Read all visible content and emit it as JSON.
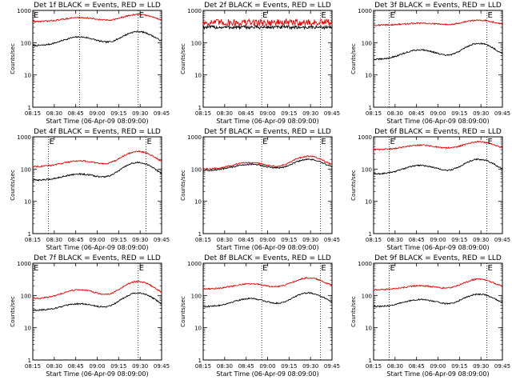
{
  "colors": {
    "events": "#000000",
    "lld": "#e00000",
    "marker_line": "#000000"
  },
  "chart_data": [
    {
      "type": "line",
      "title": "Det 1f BLACK = Events, RED = LLD",
      "xlabel": "Start Time (06-Apr-09 08:09:00)",
      "ylabel": "Counts/sec",
      "x_ticks": [
        "08:15",
        "08:30",
        "08:45",
        "09:00",
        "09:15",
        "09:30",
        "09:45"
      ],
      "y_ticks": [
        "1",
        "10",
        "100",
        "1000"
      ],
      "yscale": "log",
      "ylim": [
        1,
        1000
      ],
      "xlim_min": [
        6,
        39
      ],
      "vlines_min": [
        18,
        33
      ],
      "markers": [
        {
          "label": "E",
          "x_min": 6
        },
        {
          "label": "E",
          "x_min": 33
        }
      ],
      "series": [
        {
          "color": "events",
          "base": 80,
          "peak1": {
            "x_min": 18,
            "value": 150
          },
          "peak2": {
            "x_min": 33,
            "value": 220
          }
        },
        {
          "color": "lld",
          "base": 450,
          "peak1": {
            "x_min": 18,
            "value": 600
          },
          "peak2": {
            "x_min": 33,
            "value": 750
          }
        }
      ]
    },
    {
      "type": "line",
      "title": "Det 2f BLACK = Events, RED = LLD",
      "xlabel": "Start Time (06-Apr-09 08:09:00)",
      "ylabel": "Counts/sec",
      "x_ticks": [
        "08:15",
        "08:30",
        "08:45",
        "09:00",
        "09:15",
        "09:30",
        "09:45"
      ],
      "y_ticks": [
        "1",
        "10",
        "100",
        "1000"
      ],
      "yscale": "log",
      "ylim": [
        1,
        1000
      ],
      "xlim_min": [
        6,
        39
      ],
      "vlines_min": [
        21,
        36
      ],
      "markers": [
        {
          "label": "E",
          "x_min": 21
        },
        {
          "label": "E",
          "x_min": 36
        }
      ],
      "series": [
        {
          "color": "events",
          "base": 300,
          "noise": 0.12
        },
        {
          "color": "lld",
          "base": 420,
          "noise": 0.25
        }
      ]
    },
    {
      "type": "line",
      "title": "Det 3f BLACK = Events, RED = LLD",
      "xlabel": "Start Time (06-Apr-09 08:09:00)",
      "ylabel": "Counts/sec",
      "x_ticks": [
        "08:15",
        "08:30",
        "08:45",
        "09:00",
        "09:15",
        "09:30",
        "09:45"
      ],
      "y_ticks": [
        "1",
        "10",
        "100",
        "1000"
      ],
      "yscale": "log",
      "ylim": [
        1,
        1000
      ],
      "xlim_min": [
        6,
        39
      ],
      "vlines_min": [
        10,
        35
      ],
      "markers": [
        {
          "label": "E",
          "x_min": 10
        },
        {
          "label": "E",
          "x_min": 35
        }
      ],
      "series": [
        {
          "color": "events",
          "base": 30,
          "peak1": {
            "x_min": 18,
            "value": 60
          },
          "peak2": {
            "x_min": 33,
            "value": 95
          }
        },
        {
          "color": "lld",
          "base": 350,
          "peak1": {
            "x_min": 18,
            "value": 400
          },
          "peak2": {
            "x_min": 33,
            "value": 500
          }
        }
      ]
    },
    {
      "type": "line",
      "title": "Det 4f BLACK = Events, RED = LLD",
      "xlabel": "Start Time (06-Apr-09 08:09:00)",
      "ylabel": "Counts/sec",
      "x_ticks": [
        "08:15",
        "08:30",
        "08:45",
        "09:00",
        "09:15",
        "09:30",
        "09:45"
      ],
      "y_ticks": [
        "1",
        "10",
        "100",
        "1000"
      ],
      "yscale": "log",
      "ylim": [
        1,
        1000
      ],
      "xlim_min": [
        6,
        39
      ],
      "vlines_min": [
        10,
        35
      ],
      "markers": [
        {
          "label": "E",
          "x_min": 10
        },
        {
          "label": "E",
          "x_min": 35
        }
      ],
      "series": [
        {
          "color": "events",
          "base": 45,
          "peak1": {
            "x_min": 18,
            "value": 70
          },
          "peak2": {
            "x_min": 33,
            "value": 160
          }
        },
        {
          "color": "lld",
          "base": 120,
          "peak1": {
            "x_min": 18,
            "value": 180
          },
          "peak2": {
            "x_min": 33,
            "value": 350
          }
        }
      ]
    },
    {
      "type": "line",
      "title": "Det 5f BLACK = Events, RED = LLD",
      "xlabel": "Start Time (06-Apr-09 08:09:00)",
      "ylabel": "Counts/sec",
      "x_ticks": [
        "08:15",
        "08:30",
        "08:45",
        "09:00",
        "09:15",
        "09:30",
        "09:45"
      ],
      "y_ticks": [
        "1",
        "10",
        "100",
        "1000"
      ],
      "yscale": "log",
      "ylim": [
        1,
        1000
      ],
      "xlim_min": [
        6,
        39
      ],
      "vlines_min": [
        21,
        36
      ],
      "markers": [
        {
          "label": "E",
          "x_min": 21
        },
        {
          "label": "E",
          "x_min": 36
        }
      ],
      "series": [
        {
          "color": "events",
          "base": 90,
          "peak1": {
            "x_min": 18,
            "value": 140
          },
          "peak2": {
            "x_min": 33,
            "value": 200
          }
        },
        {
          "color": "lld",
          "base": 100,
          "peak1": {
            "x_min": 18,
            "value": 160
          },
          "peak2": {
            "x_min": 33,
            "value": 250
          }
        }
      ]
    },
    {
      "type": "line",
      "title": "Det 6f BLACK = Events, RED = LLD",
      "xlabel": "Start Time (06-Apr-09 08:09:00)",
      "ylabel": "Counts/sec",
      "x_ticks": [
        "08:15",
        "08:30",
        "08:45",
        "09:00",
        "09:15",
        "09:30",
        "09:45"
      ],
      "y_ticks": [
        "1",
        "10",
        "100",
        "1000"
      ],
      "yscale": "log",
      "ylim": [
        1,
        1000
      ],
      "xlim_min": [
        6,
        39
      ],
      "vlines_min": [
        10,
        35
      ],
      "markers": [
        {
          "label": "E",
          "x_min": 10
        },
        {
          "label": "E",
          "x_min": 35
        }
      ],
      "series": [
        {
          "color": "events",
          "base": 70,
          "peak1": {
            "x_min": 18,
            "value": 130
          },
          "peak2": {
            "x_min": 33,
            "value": 200
          }
        },
        {
          "color": "lld",
          "base": 400,
          "peak1": {
            "x_min": 18,
            "value": 550
          },
          "peak2": {
            "x_min": 33,
            "value": 700
          }
        }
      ]
    },
    {
      "type": "line",
      "title": "Det 7f BLACK = Events, RED = LLD",
      "xlabel": "Start Time (06-Apr-09 08:09:00)",
      "ylabel": "Counts/sec",
      "x_ticks": [
        "08:15",
        "08:30",
        "08:45",
        "09:00",
        "09:15",
        "09:30",
        "09:45"
      ],
      "y_ticks": [
        "1",
        "10",
        "100",
        "1000"
      ],
      "yscale": "log",
      "ylim": [
        1,
        1000
      ],
      "xlim_min": [
        6,
        39
      ],
      "vlines_min": [
        6,
        33
      ],
      "markers": [
        {
          "label": "E",
          "x_min": 6
        },
        {
          "label": "E",
          "x_min": 33
        }
      ],
      "series": [
        {
          "color": "events",
          "base": 35,
          "peak1": {
            "x_min": 18,
            "value": 55
          },
          "peak2": {
            "x_min": 33,
            "value": 120
          }
        },
        {
          "color": "lld",
          "base": 80,
          "peak1": {
            "x_min": 18,
            "value": 150
          },
          "peak2": {
            "x_min": 33,
            "value": 270
          }
        }
      ]
    },
    {
      "type": "line",
      "title": "Det 8f BLACK = Events, RED = LLD",
      "xlabel": "Start Time (06-Apr-09 08:09:00)",
      "ylabel": "Counts/sec",
      "x_ticks": [
        "08:15",
        "08:30",
        "08:45",
        "09:00",
        "09:15",
        "09:30",
        "09:45"
      ],
      "y_ticks": [
        "1",
        "10",
        "100",
        "1000"
      ],
      "yscale": "log",
      "ylim": [
        1,
        1000
      ],
      "xlim_min": [
        6,
        39
      ],
      "vlines_min": [
        21,
        36
      ],
      "markers": [
        {
          "label": "E",
          "x_min": 21
        },
        {
          "label": "E",
          "x_min": 36
        }
      ],
      "series": [
        {
          "color": "events",
          "base": 45,
          "peak1": {
            "x_min": 18,
            "value": 80
          },
          "peak2": {
            "x_min": 33,
            "value": 120
          }
        },
        {
          "color": "lld",
          "base": 160,
          "peak1": {
            "x_min": 18,
            "value": 230
          },
          "peak2": {
            "x_min": 33,
            "value": 350
          }
        }
      ]
    },
    {
      "type": "line",
      "title": "Det 9f BLACK = Events, RED = LLD",
      "xlabel": "Start Time (06-Apr-09 08:09:00)",
      "ylabel": "Counts/sec",
      "x_ticks": [
        "08:15",
        "08:30",
        "08:45",
        "09:00",
        "09:15",
        "09:30",
        "09:45"
      ],
      "y_ticks": [
        "1",
        "10",
        "100",
        "1000"
      ],
      "yscale": "log",
      "ylim": [
        1,
        1000
      ],
      "xlim_min": [
        6,
        39
      ],
      "vlines_min": [
        10,
        35
      ],
      "markers": [
        {
          "label": "E",
          "x_min": 10
        },
        {
          "label": "E",
          "x_min": 35
        }
      ],
      "series": [
        {
          "color": "events",
          "base": 45,
          "peak1": {
            "x_min": 18,
            "value": 75
          },
          "peak2": {
            "x_min": 33,
            "value": 110
          }
        },
        {
          "color": "lld",
          "base": 150,
          "peak1": {
            "x_min": 18,
            "value": 200
          },
          "peak2": {
            "x_min": 33,
            "value": 320
          }
        }
      ]
    }
  ]
}
